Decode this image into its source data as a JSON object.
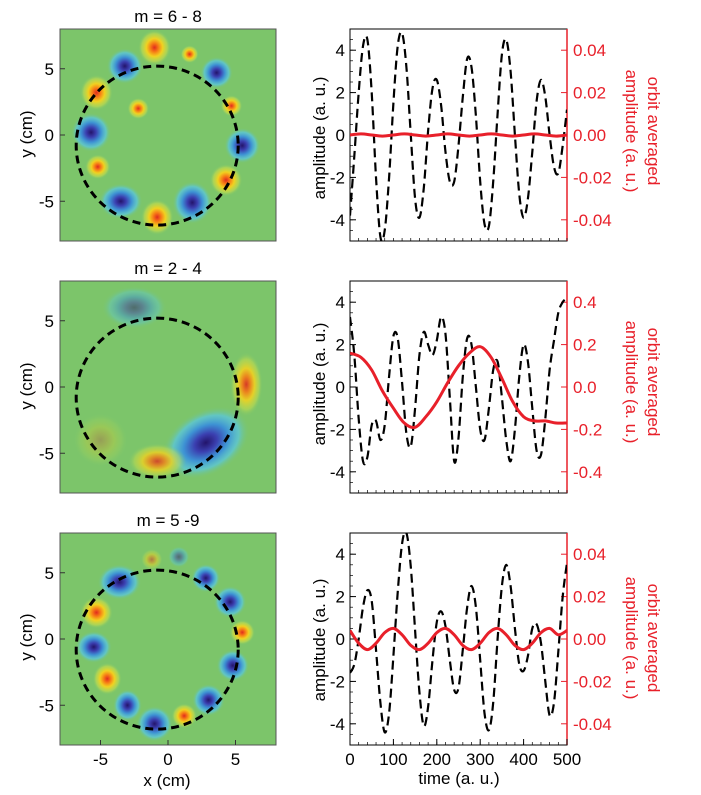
{
  "colors": {
    "dashed_line": "#000000",
    "orbit_line": "#e8202a",
    "right_axis": "#e8202a",
    "map_background": "#7cc56a"
  },
  "chart_data": [
    {
      "type": "heatmap",
      "title": "m = 6 - 8",
      "xlabel": "",
      "ylabel": "y (cm)",
      "xlim": [
        -8,
        8
      ],
      "ylim": [
        -8,
        8
      ],
      "yticks": [
        -5,
        0,
        5
      ],
      "circle": {
        "center": [
          -0.8,
          -0.8
        ],
        "radius": 6.0
      },
      "lobes": [
        {
          "x": -1.0,
          "y": 6.6,
          "sign": 1,
          "sx": 0.9,
          "sy": 1.0
        },
        {
          "x": -3.2,
          "y": 5.2,
          "sign": -1,
          "sx": 1.0,
          "sy": 1.0
        },
        {
          "x": -5.3,
          "y": 3.2,
          "sign": 1,
          "sx": 0.9,
          "sy": 1.0
        },
        {
          "x": -5.7,
          "y": 0.2,
          "sign": -1,
          "sx": 1.1,
          "sy": 1.1
        },
        {
          "x": -5.2,
          "y": -2.4,
          "sign": 1,
          "sx": 0.7,
          "sy": 0.7
        },
        {
          "x": -3.5,
          "y": -5.0,
          "sign": -1,
          "sx": 1.2,
          "sy": 1.0
        },
        {
          "x": -0.8,
          "y": -6.2,
          "sign": 1,
          "sx": 0.9,
          "sy": 1.0
        },
        {
          "x": 1.8,
          "y": -5.1,
          "sign": -1,
          "sx": 1.1,
          "sy": 1.2
        },
        {
          "x": 4.3,
          "y": -3.4,
          "sign": 1,
          "sx": 0.9,
          "sy": 0.9
        },
        {
          "x": 5.5,
          "y": -0.8,
          "sign": -1,
          "sx": 1.0,
          "sy": 1.0
        },
        {
          "x": 4.7,
          "y": 2.2,
          "sign": 1,
          "sx": 0.6,
          "sy": 0.6
        },
        {
          "x": 3.6,
          "y": 4.7,
          "sign": -1,
          "sx": 0.9,
          "sy": 0.9
        },
        {
          "x": 1.6,
          "y": 6.1,
          "sign": 1,
          "sx": 0.5,
          "sy": 0.5
        },
        {
          "x": -2.2,
          "y": 2.0,
          "sign": 1,
          "sx": 0.6,
          "sy": 0.6
        }
      ]
    },
    {
      "type": "line",
      "xlabel": "",
      "ylabel": "amplitude (a. u.)",
      "ylabel2": "orbit averaged amplitude (a. u.)",
      "xlim": [
        0,
        500
      ],
      "ylim": [
        -5,
        5
      ],
      "ylim2": [
        -0.05,
        0.05
      ],
      "yticks": [
        -4,
        -2,
        0,
        2,
        4
      ],
      "yticklabels": [
        "-4",
        "-2",
        "0",
        "2",
        "4"
      ],
      "yticks2": [
        -0.04,
        -0.02,
        0.0,
        0.02,
        0.04
      ],
      "yticklabels2": [
        "-0.04",
        "-0.02",
        "0.00",
        "0.02",
        "0.04"
      ],
      "series": [
        {
          "axis": "left",
          "style": "dashed",
          "x": [
            0,
            10,
            20,
            30,
            40,
            50,
            60,
            70,
            80,
            90,
            100,
            110,
            120,
            130,
            140,
            150,
            160,
            170,
            180,
            190,
            200,
            210,
            220,
            230,
            240,
            250,
            260,
            270,
            280,
            290,
            300,
            310,
            320,
            330,
            340,
            350,
            360,
            370,
            380,
            390,
            400,
            410,
            420,
            430,
            440,
            450,
            460,
            470,
            480,
            490,
            500
          ],
          "y": [
            -3.8,
            -1.0,
            2.0,
            4.2,
            4.5,
            2.0,
            -2.0,
            -4.8,
            -4.5,
            -2.0,
            1.5,
            4.2,
            4.8,
            3.2,
            0.0,
            -3.0,
            -3.9,
            -2.5,
            0.2,
            2.2,
            2.6,
            1.4,
            -0.8,
            -2.2,
            -2.2,
            -0.5,
            1.8,
            3.6,
            3.2,
            0.9,
            -2.2,
            -4.2,
            -4.3,
            -2.2,
            1.0,
            3.8,
            4.5,
            3.0,
            0.0,
            -2.8,
            -3.9,
            -3.0,
            -0.8,
            1.6,
            2.6,
            1.8,
            0.0,
            -1.5,
            -1.8,
            -0.5,
            1.2
          ]
        },
        {
          "axis": "right",
          "style": "solid",
          "x": [
            0,
            25,
            50,
            75,
            100,
            125,
            150,
            175,
            200,
            225,
            250,
            275,
            300,
            325,
            350,
            375,
            400,
            425,
            450,
            475,
            500
          ],
          "y": [
            0.0,
            0.0005,
            0.0,
            -0.0005,
            0.0,
            0.0005,
            0.0,
            -0.0005,
            0.0,
            0.0005,
            0.0,
            -0.0005,
            0.0,
            0.0005,
            0.0,
            -0.0005,
            0.0,
            0.0005,
            0.0,
            -0.0005,
            0.0
          ]
        }
      ]
    },
    {
      "type": "heatmap",
      "title": "m = 2 - 4",
      "xlabel": "",
      "ylabel": "y (cm)",
      "xlim": [
        -8,
        8
      ],
      "ylim": [
        -8,
        8
      ],
      "yticks": [
        -5,
        0,
        5
      ],
      "circle": {
        "center": [
          -0.8,
          -0.8
        ],
        "radius": 6.0
      },
      "lobes": [
        {
          "x": -2.5,
          "y": 6.0,
          "sign": -1,
          "sx": 1.8,
          "sy": 1.2,
          "amp": 0.5
        },
        {
          "x": 2.8,
          "y": -4.2,
          "sign": -1,
          "sx": 2.6,
          "sy": 1.8,
          "rot": -30
        },
        {
          "x": -0.8,
          "y": -5.6,
          "sign": 1,
          "sx": 1.6,
          "sy": 1.0,
          "amp": 0.8
        },
        {
          "x": 5.8,
          "y": 0.2,
          "sign": 1,
          "sx": 0.9,
          "sy": 1.8,
          "amp": 0.9
        },
        {
          "x": -5.0,
          "y": -4.0,
          "sign": 1,
          "sx": 1.5,
          "sy": 1.5,
          "amp": 0.25
        }
      ]
    },
    {
      "type": "line",
      "xlabel": "",
      "ylabel": "amplitude (a. u.)",
      "ylabel2": "orbit averaged amplitude (a. u.)",
      "xlim": [
        0,
        500
      ],
      "ylim": [
        -5,
        5
      ],
      "ylim2": [
        -0.5,
        0.5
      ],
      "yticks": [
        -4,
        -2,
        0,
        2,
        4
      ],
      "yticklabels": [
        "-4",
        "-2",
        "0",
        "2",
        "4"
      ],
      "yticks2": [
        -0.4,
        -0.2,
        0.0,
        0.2,
        0.4
      ],
      "yticklabels2": [
        "-0.4",
        "-0.2",
        "0.0",
        "0.2",
        "0.4"
      ],
      "series": [
        {
          "axis": "left",
          "style": "dashed",
          "x": [
            0,
            10,
            20,
            30,
            40,
            50,
            60,
            70,
            80,
            90,
            100,
            110,
            120,
            130,
            140,
            150,
            160,
            170,
            180,
            190,
            200,
            210,
            220,
            230,
            240,
            250,
            260,
            270,
            280,
            290,
            300,
            310,
            320,
            330,
            340,
            350,
            360,
            370,
            380,
            390,
            400,
            410,
            420,
            430,
            440,
            450,
            460,
            470,
            480,
            490,
            500
          ],
          "y": [
            3.3,
            1.5,
            -1.5,
            -3.5,
            -3.3,
            -1.8,
            -1.6,
            -2.5,
            -1.8,
            0.5,
            2.4,
            2.3,
            0.2,
            -2.2,
            -2.8,
            -1.0,
            1.5,
            2.6,
            2.0,
            1.5,
            2.2,
            3.3,
            2.5,
            -0.5,
            -3.5,
            -2.4,
            0.5,
            2.3,
            2.0,
            0.0,
            -2.0,
            -2.5,
            -1.0,
            0.8,
            1.2,
            -0.5,
            -2.5,
            -3.5,
            -2.0,
            0.5,
            2.0,
            1.2,
            -1.0,
            -3.0,
            -3.2,
            -1.5,
            0.8,
            2.2,
            3.5,
            4.0,
            4.2
          ]
        },
        {
          "axis": "right",
          "style": "solid",
          "x": [
            0,
            25,
            50,
            75,
            100,
            125,
            150,
            175,
            200,
            225,
            250,
            275,
            300,
            325,
            350,
            375,
            400,
            425,
            450,
            475,
            500
          ],
          "y": [
            0.16,
            0.14,
            0.08,
            -0.02,
            -0.1,
            -0.17,
            -0.19,
            -0.14,
            -0.07,
            0.02,
            0.1,
            0.16,
            0.19,
            0.14,
            0.04,
            -0.07,
            -0.14,
            -0.16,
            -0.16,
            -0.17,
            -0.17
          ]
        }
      ]
    },
    {
      "type": "heatmap",
      "title": "m = 5 -9",
      "xlabel": "x (cm)",
      "ylabel": "y (cm)",
      "xlim": [
        -8,
        8
      ],
      "ylim": [
        -8,
        8
      ],
      "xticks": [
        -5,
        0,
        5
      ],
      "yticks": [
        -5,
        0,
        5
      ],
      "circle": {
        "center": [
          -0.8,
          -0.8
        ],
        "radius": 6.0
      },
      "lobes": [
        {
          "x": -3.6,
          "y": 4.3,
          "sign": -1,
          "sx": 1.2,
          "sy": 1.0
        },
        {
          "x": -5.3,
          "y": 2.0,
          "sign": 1,
          "sx": 0.9,
          "sy": 0.9
        },
        {
          "x": -5.5,
          "y": -0.6,
          "sign": -1,
          "sx": 1.0,
          "sy": 0.9
        },
        {
          "x": -4.5,
          "y": -3.0,
          "sign": 1,
          "sx": 0.8,
          "sy": 0.9
        },
        {
          "x": -3.0,
          "y": -5.0,
          "sign": -1,
          "sx": 0.8,
          "sy": 0.9
        },
        {
          "x": -1.0,
          "y": -6.4,
          "sign": -1,
          "sx": 1.0,
          "sy": 1.0
        },
        {
          "x": 1.2,
          "y": -5.8,
          "sign": 1,
          "sx": 0.7,
          "sy": 0.7
        },
        {
          "x": 3.0,
          "y": -4.6,
          "sign": -1,
          "sx": 0.9,
          "sy": 0.9
        },
        {
          "x": 4.8,
          "y": -2.0,
          "sign": -1,
          "sx": 0.9,
          "sy": 0.9
        },
        {
          "x": 5.5,
          "y": 0.5,
          "sign": 1,
          "sx": 0.7,
          "sy": 0.7
        },
        {
          "x": 4.6,
          "y": 2.8,
          "sign": -1,
          "sx": 0.9,
          "sy": 0.9
        },
        {
          "x": 2.8,
          "y": 4.6,
          "sign": -1,
          "sx": 0.8,
          "sy": 0.8
        },
        {
          "x": 0.8,
          "y": 6.2,
          "sign": -1,
          "sx": 0.6,
          "sy": 0.6,
          "amp": 0.5
        },
        {
          "x": -1.2,
          "y": 6.0,
          "sign": 1,
          "sx": 0.6,
          "sy": 0.6,
          "amp": 0.5
        }
      ]
    },
    {
      "type": "line",
      "xlabel": "time (a. u.)",
      "ylabel": "amplitude (a. u.)",
      "ylabel2": "orbit averaged amplitude (a. u.)",
      "xlim": [
        0,
        500
      ],
      "ylim": [
        -5,
        5
      ],
      "ylim2": [
        -0.05,
        0.05
      ],
      "xticks": [
        0,
        100,
        200,
        300,
        400,
        500
      ],
      "xticklabels": [
        "0",
        "100",
        "200",
        "300",
        "400",
        "500"
      ],
      "yticks": [
        -4,
        -2,
        0,
        2,
        4
      ],
      "yticklabels": [
        "-4",
        "-2",
        "0",
        "2",
        "4"
      ],
      "yticks2": [
        -0.04,
        -0.02,
        0.0,
        0.02,
        0.04
      ],
      "yticklabels2": [
        "-0.04",
        "-0.02",
        "0.00",
        "0.02",
        "0.04"
      ],
      "series": [
        {
          "axis": "left",
          "style": "dashed",
          "x": [
            0,
            10,
            20,
            30,
            40,
            50,
            60,
            70,
            80,
            90,
            100,
            110,
            120,
            130,
            140,
            150,
            160,
            170,
            180,
            190,
            200,
            210,
            220,
            230,
            240,
            250,
            260,
            270,
            280,
            290,
            300,
            310,
            320,
            330,
            340,
            350,
            360,
            370,
            380,
            390,
            400,
            410,
            420,
            430,
            440,
            450,
            460,
            470,
            480,
            490,
            500
          ],
          "y": [
            -1.6,
            -1.2,
            0.0,
            1.5,
            2.3,
            1.8,
            -0.5,
            -3.0,
            -4.4,
            -3.5,
            -0.8,
            2.2,
            4.5,
            5.0,
            3.4,
            0.4,
            -2.5,
            -4.1,
            -3.2,
            -1.0,
            0.8,
            1.3,
            0.6,
            -1.0,
            -2.4,
            -2.3,
            -0.5,
            1.5,
            2.5,
            1.5,
            -1.0,
            -3.5,
            -4.3,
            -3.0,
            0.0,
            2.5,
            3.5,
            2.5,
            0.5,
            -1.2,
            -1.5,
            -0.8,
            0.5,
            0.7,
            -0.2,
            -2.0,
            -3.6,
            -3.0,
            -0.6,
            2.0,
            3.6
          ]
        },
        {
          "axis": "right",
          "style": "solid",
          "x": [
            0,
            20,
            40,
            60,
            80,
            100,
            120,
            140,
            160,
            180,
            200,
            220,
            240,
            260,
            280,
            300,
            320,
            340,
            360,
            380,
            400,
            420,
            440,
            460,
            480,
            500
          ],
          "y": [
            0.004,
            -0.002,
            -0.005,
            -0.002,
            0.003,
            0.005,
            0.002,
            -0.003,
            -0.005,
            -0.002,
            0.003,
            0.005,
            0.002,
            -0.003,
            -0.005,
            -0.002,
            0.003,
            0.005,
            0.002,
            -0.003,
            -0.005,
            -0.002,
            0.003,
            0.005,
            0.002,
            0.004
          ]
        }
      ]
    }
  ]
}
